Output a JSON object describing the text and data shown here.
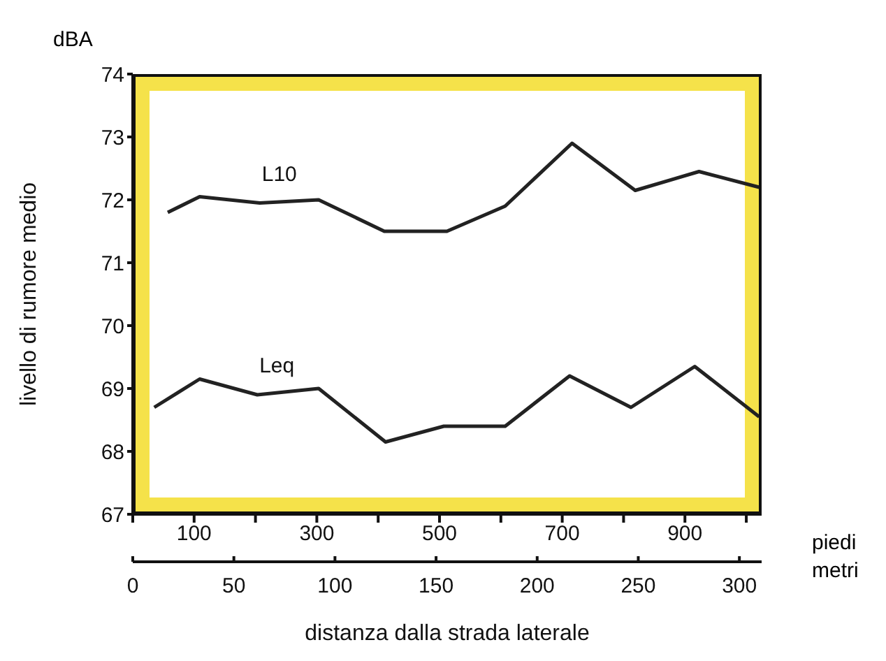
{
  "chart_data": {
    "type": "line",
    "xlabel": "distanza dalla strada laterale",
    "ylabel": "livello di rumore medio",
    "annotations": [
      "dBA",
      "piedi",
      "metri"
    ],
    "xlim": [
      0,
      1025
    ],
    "xticks": [
      {
        "value": 0,
        "label": null
      },
      100,
      {
        "value": 200,
        "label": null
      },
      300,
      {
        "value": 400,
        "label": null
      },
      500,
      {
        "value": 600,
        "label": null
      },
      700,
      {
        "value": 800,
        "label": null
      },
      900,
      {
        "value": 1000,
        "label": null
      }
    ],
    "x2lim": [
      0,
      311
    ],
    "x2ticks": [
      0,
      50,
      100,
      150,
      200,
      250,
      300
    ],
    "ylim": [
      67,
      74
    ],
    "yticks": [
      67,
      68,
      69,
      70,
      71,
      72,
      73,
      74
    ],
    "grid": false,
    "legend": false,
    "marker": "none",
    "line_style": "solid",
    "series": [
      {
        "name": "L10",
        "color": "#222222",
        "x": [
          57,
          109,
          207,
          303,
          410,
          512,
          607,
          716,
          819,
          923,
          1021
        ],
        "values": [
          71.8,
          72.05,
          71.95,
          72.0,
          71.5,
          71.5,
          71.9,
          72.9,
          72.15,
          72.45,
          72.2
        ]
      },
      {
        "name": "Leq",
        "color": "#222222",
        "x": [
          35,
          109,
          203,
          303,
          412,
          507,
          607,
          712,
          812,
          916,
          1021
        ],
        "values": [
          68.7,
          69.15,
          68.9,
          69.0,
          68.15,
          68.4,
          68.4,
          69.2,
          68.7,
          69.35,
          68.55
        ]
      }
    ]
  }
}
